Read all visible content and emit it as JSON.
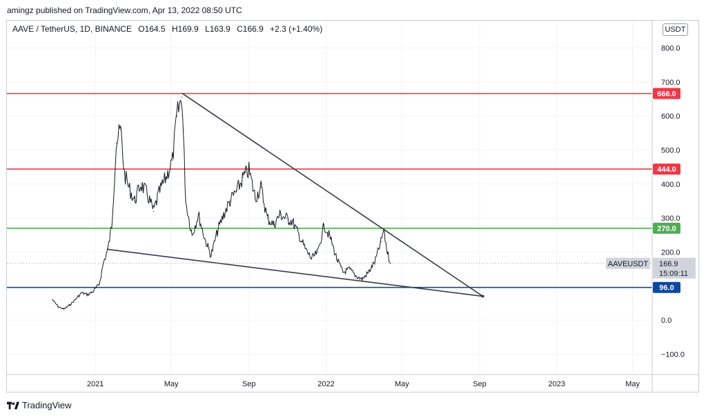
{
  "publisher_line": "amingz published on TradingView.com, Apr 13, 2022 08:50 UTC",
  "legend": {
    "symbol": "AAVE / TetherUS, 1D, BINANCE",
    "open": "O164.5",
    "high": "H169.9",
    "low": "L163.9",
    "close": "C166.9",
    "change": "+2.3 (+1.40%)"
  },
  "unit_badge": "USDT",
  "footer_brand": "TradingView",
  "colors": {
    "resistance": "#f23645",
    "support_green": "#4caf50",
    "support_blue": "#0d47a1",
    "trendline": "#363a45",
    "candles": "#131722"
  },
  "chart_data": {
    "type": "line",
    "title": "",
    "xlabel": "",
    "ylabel": "",
    "ylim": [
      -160,
      880
    ],
    "x_range": [
      "2020-08-14",
      "2023-06-01"
    ],
    "y_ticks": [
      "800.0",
      "700.0",
      "600.0",
      "500.0",
      "400.0",
      "300.0",
      "200.0",
      "0.0",
      "−100.0"
    ],
    "y_tick_values": [
      800,
      700,
      600,
      500,
      400,
      300,
      200,
      0,
      -100
    ],
    "x_tick_labels": [
      {
        "label": "2021",
        "date": "2021-01-01"
      },
      {
        "label": "May",
        "date": "2021-05-01"
      },
      {
        "label": "Sep",
        "date": "2021-09-01"
      },
      {
        "label": "2022",
        "date": "2022-01-01"
      },
      {
        "label": "May",
        "date": "2022-05-01"
      },
      {
        "label": "Sep",
        "date": "2022-09-01"
      },
      {
        "label": "2023",
        "date": "2023-01-01"
      },
      {
        "label": "May",
        "date": "2023-05-01"
      }
    ],
    "horizontal_levels": [
      {
        "value": 666,
        "label": "666.0",
        "color": "#f23645"
      },
      {
        "value": 444,
        "label": "444.0",
        "color": "#f23645"
      },
      {
        "value": 270,
        "label": "270.0",
        "color": "#4caf50"
      },
      {
        "value": 96,
        "label": "96.0",
        "color": "#0d47a1"
      }
    ],
    "trendlines": [
      {
        "name": "upper",
        "x": [
          "2021-05-18",
          "2022-09-06"
        ],
        "y": [
          667,
          70
        ]
      },
      {
        "name": "lower",
        "x": [
          "2021-01-20",
          "2022-09-06"
        ],
        "y": [
          208,
          70
        ]
      }
    ],
    "series": [
      {
        "x": [
          "2020-10-25",
          "2020-11-03",
          "2020-11-12",
          "2020-11-22",
          "2020-12-01",
          "2020-12-10",
          "2020-12-20",
          "2020-12-29",
          "2021-01-07",
          "2021-01-14",
          "2021-01-21",
          "2021-01-27",
          "2021-02-03",
          "2021-02-10",
          "2021-02-16",
          "2021-02-23",
          "2021-03-04",
          "2021-03-14",
          "2021-03-24",
          "2021-04-03",
          "2021-04-13",
          "2021-04-23",
          "2021-05-03",
          "2021-05-10",
          "2021-05-18",
          "2021-05-24",
          "2021-06-03",
          "2021-06-13",
          "2021-06-23",
          "2021-07-03",
          "2021-07-13",
          "2021-07-23",
          "2021-08-02",
          "2021-08-13",
          "2021-08-23",
          "2021-09-01",
          "2021-09-11",
          "2021-09-20",
          "2021-09-30",
          "2021-10-10",
          "2021-10-20",
          "2021-10-30",
          "2021-11-09",
          "2021-11-19",
          "2021-11-29",
          "2021-12-09",
          "2021-12-19",
          "2021-12-29",
          "2022-01-08",
          "2022-01-18",
          "2022-01-28",
          "2022-02-07",
          "2022-02-17",
          "2022-02-27",
          "2022-03-09",
          "2022-03-19",
          "2022-03-29",
          "2022-04-02",
          "2022-04-08",
          "2022-04-13"
        ],
        "values": [
          60,
          40,
          32,
          45,
          62,
          80,
          75,
          85,
          105,
          170,
          210,
          280,
          520,
          560,
          430,
          390,
          350,
          400,
          370,
          320,
          380,
          420,
          470,
          600,
          655,
          350,
          250,
          310,
          240,
          190,
          260,
          310,
          350,
          380,
          420,
          440,
          360,
          390,
          300,
          280,
          310,
          300,
          290,
          250,
          210,
          180,
          200,
          280,
          240,
          180,
          140,
          150,
          130,
          120,
          140,
          170,
          230,
          265,
          200,
          166.9
        ]
      }
    ],
    "last_price": {
      "symbol": "AAVEUSDT",
      "value": 166.9,
      "label": "166.9",
      "countdown": "15:09:11"
    }
  }
}
